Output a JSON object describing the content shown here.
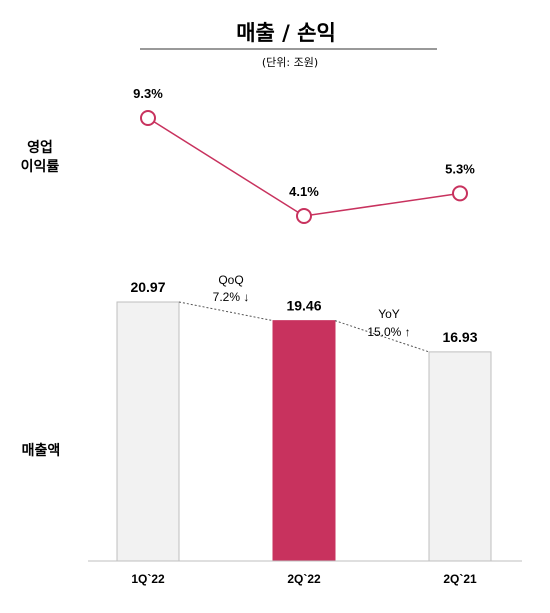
{
  "title": "매출 / 손익",
  "unit": "(단위: 조원)",
  "row_labels": {
    "margin_line1": "영업",
    "margin_line2": "이익률",
    "sales": "매출액"
  },
  "colors": {
    "accent": "#c8325e",
    "bar_default": "#f2f2f2",
    "bar_stroke": "#bfbfbf",
    "line": "#c8325e"
  },
  "annotations": {
    "qoq": {
      "label": "QoQ",
      "value": "7.2% ↓"
    },
    "yoy": {
      "label": "YoY",
      "value": "15.0% ↑"
    }
  },
  "chart_data": [
    {
      "type": "line",
      "ylabel": "영업 이익률",
      "categories": [
        "1Q`22",
        "2Q`22",
        "2Q`21"
      ],
      "values": [
        9.3,
        4.1,
        5.3
      ],
      "labels": [
        "9.3%",
        "4.1%",
        "5.3%"
      ],
      "ylim": [
        4.1,
        9.3
      ]
    },
    {
      "type": "bar",
      "ylabel": "매출액",
      "categories": [
        "1Q`22",
        "2Q`22",
        "2Q`21"
      ],
      "values": [
        20.97,
        19.46,
        16.93
      ],
      "labels": [
        "20.97",
        "19.46",
        "16.93"
      ],
      "highlight_index": 1,
      "ylim": [
        0,
        20.97
      ]
    }
  ]
}
